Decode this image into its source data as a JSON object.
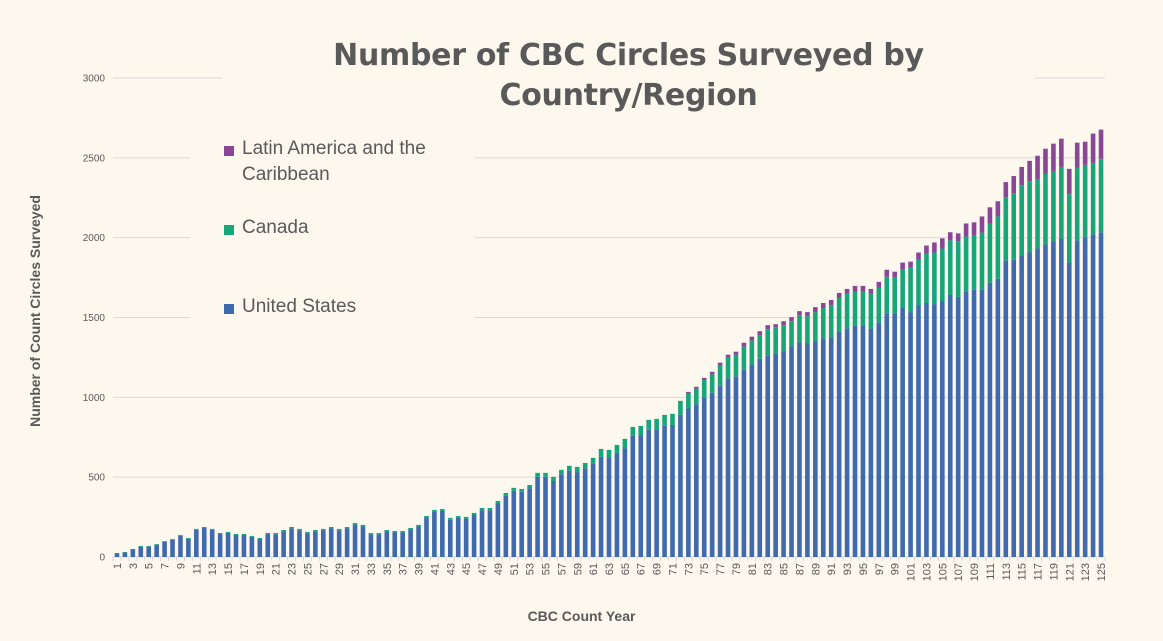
{
  "chart_data": {
    "type": "bar",
    "stacked": true,
    "title": "Number of CBC Circles Surveyed by Country/Region",
    "xlabel": "CBC Count Year",
    "ylabel": "Number of Count Circles Surveyed",
    "ylim": [
      0,
      3000
    ],
    "yticks": [
      0,
      500,
      1000,
      1500,
      2000,
      2500,
      3000
    ],
    "grid": true,
    "legend_position": "top-left",
    "xtick_step": 2,
    "categories_range": [
      1,
      125
    ],
    "series": [
      {
        "name": "United States",
        "color": "#3f6aad",
        "values": [
          22,
          28,
          47,
          65,
          65,
          77,
          95,
          108,
          133,
          114,
          170,
          182,
          170,
          144,
          151,
          138,
          138,
          126,
          113,
          144,
          143,
          162,
          180,
          168,
          149,
          161,
          168,
          179,
          167,
          179,
          203,
          191,
          142,
          142,
          160,
          154,
          154,
          172,
          191,
          247,
          282,
          288,
          233,
          245,
          239,
          263,
          293,
          292,
          335,
          384,
          415,
          408,
          431,
          502,
          502,
          476,
          518,
          541,
          532,
          555,
          585,
          627,
          623,
          652,
          680,
          759,
          761,
          797,
          800,
          822,
          827,
          890,
          930,
          956,
          998,
          1029,
          1072,
          1119,
          1132,
          1172,
          1205,
          1242,
          1261,
          1274,
          1287,
          1318,
          1344,
          1337,
          1350,
          1369,
          1375,
          1413,
          1432,
          1451,
          1451,
          1432,
          1470,
          1527,
          1527,
          1565,
          1534,
          1578,
          1591,
          1584,
          1603,
          1641,
          1629,
          1660,
          1673,
          1673,
          1717,
          1742,
          1856,
          1862,
          1888,
          1907,
          1932,
          1957,
          1976,
          1995,
          1844,
          1983,
          2002,
          2021,
          2034
        ]
      },
      {
        "name": "Canada",
        "color": "#17a57a",
        "values": [
          3,
          3,
          3,
          4,
          4,
          4,
          5,
          5,
          5,
          5,
          6,
          6,
          6,
          6,
          6,
          6,
          6,
          6,
          6,
          6,
          7,
          7,
          8,
          8,
          8,
          8,
          8,
          9,
          9,
          9,
          10,
          10,
          8,
          8,
          9,
          9,
          9,
          10,
          10,
          10,
          13,
          13,
          12,
          12,
          12,
          13,
          14,
          15,
          16,
          17,
          18,
          18,
          20,
          25,
          25,
          26,
          28,
          30,
          32,
          34,
          36,
          50,
          48,
          50,
          60,
          56,
          60,
          62,
          65,
          68,
          70,
          88,
          92,
          98,
          110,
          115,
          126,
          130,
          135,
          145,
          150,
          147,
          166,
          165,
          165,
          159,
          171,
          171,
          184,
          190,
          203,
          209,
          216,
          209,
          215,
          216,
          215,
          228,
          222,
          234,
          278,
          285,
          310,
          323,
          329,
          342,
          348,
          347,
          340,
          359,
          372,
          391,
          397,
          416,
          441,
          447,
          435,
          442,
          442,
          448,
          428,
          454,
          454,
          447,
          460
        ]
      },
      {
        "name": "Latin America and the Caribbean",
        "color": "#8a4798",
        "values": [
          0,
          0,
          0,
          0,
          0,
          0,
          0,
          0,
          0,
          0,
          0,
          0,
          0,
          0,
          0,
          0,
          0,
          0,
          0,
          0,
          0,
          0,
          0,
          0,
          0,
          0,
          0,
          0,
          0,
          0,
          0,
          0,
          0,
          0,
          0,
          0,
          0,
          0,
          0,
          0,
          0,
          0,
          0,
          0,
          0,
          0,
          0,
          0,
          0,
          0,
          0,
          0,
          0,
          0,
          0,
          0,
          0,
          0,
          0,
          0,
          0,
          0,
          0,
          0,
          0,
          0,
          0,
          0,
          0,
          0,
          0,
          0,
          12,
          12,
          14,
          16,
          19,
          18,
          19,
          25,
          25,
          25,
          25,
          19,
          25,
          25,
          25,
          26,
          31,
          32,
          32,
          32,
          31,
          38,
          32,
          31,
          38,
          44,
          38,
          45,
          38,
          44,
          50,
          63,
          64,
          51,
          50,
          82,
          83,
          101,
          101,
          95,
          95,
          108,
          114,
          127,
          146,
          158,
          171,
          177,
          159,
          158,
          145,
          184,
          183
        ]
      }
    ]
  },
  "legend": {
    "items": [
      {
        "label_line1": "Latin America and the",
        "label_line2": "Caribbean",
        "color": "#8a4798"
      },
      {
        "label_line1": "Canada",
        "color": "#17a57a"
      },
      {
        "label_line1": "United States",
        "color": "#3f6aad"
      }
    ]
  },
  "colors": {
    "background": "#fdf8ee",
    "grid": "#d9d9d9",
    "text": "#595959"
  }
}
